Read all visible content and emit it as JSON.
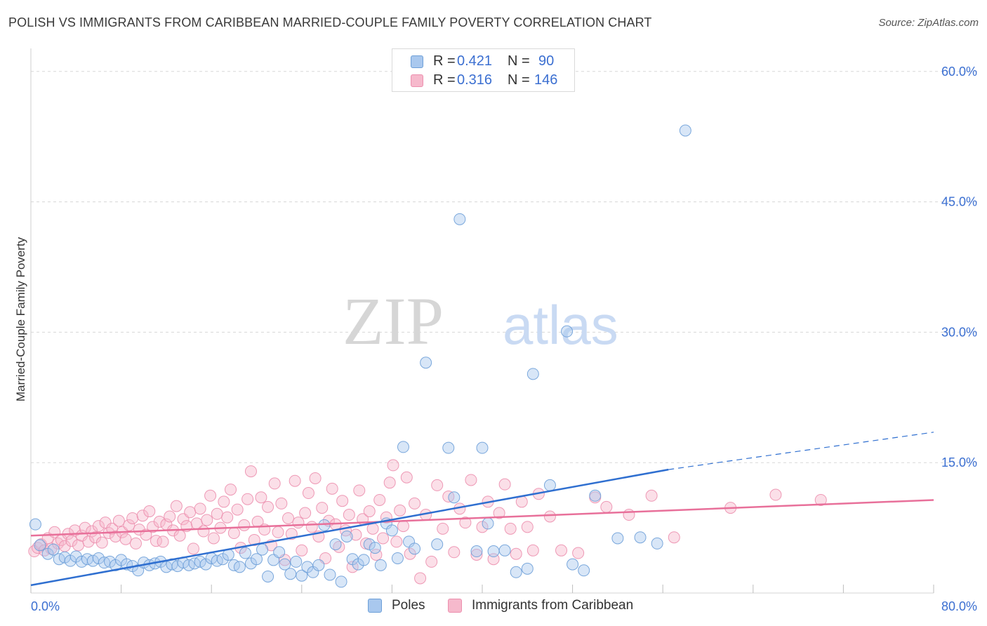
{
  "title": "POLISH VS IMMIGRANTS FROM CARIBBEAN MARRIED-COUPLE FAMILY POVERTY CORRELATION CHART",
  "source": "Source: ZipAtlas.com",
  "watermark": {
    "zip": "ZIP",
    "atlas": "atlas"
  },
  "legend_top": {
    "rows": [
      {
        "r_label": "R =",
        "r_value": "0.421",
        "n_label": "N =",
        "n_value": "90"
      },
      {
        "r_label": "R =",
        "r_value": "0.316",
        "n_label": "N =",
        "n_value": "146"
      }
    ]
  },
  "legend_bottom": {
    "items": [
      {
        "label": "Poles"
      },
      {
        "label": "Immigrants from Caribbean"
      }
    ]
  },
  "colors": {
    "blue_fill": "#a9c8ee",
    "blue_stroke": "#6d9fd8",
    "blue_line": "#2f6fd0",
    "pink_fill": "#f6b9cc",
    "pink_stroke": "#ec8fae",
    "pink_line": "#e8709a",
    "axis_text": "#3b6fd1",
    "grid": "#d8d8d8"
  },
  "chart_data": {
    "type": "scatter",
    "title": "POLISH VS IMMIGRANTS FROM CARIBBEAN MARRIED-COUPLE FAMILY POVERTY CORRELATION CHART",
    "xlabel": "",
    "ylabel": "Married-Couple Family Poverty",
    "xlim": [
      0,
      80
    ],
    "ylim": [
      0,
      62
    ],
    "x_tick_labels": [
      "0.0%",
      "80.0%"
    ],
    "y_ticks": [
      15,
      30,
      45,
      60
    ],
    "y_tick_labels": [
      "15.0%",
      "30.0%",
      "45.0%",
      "60.0%"
    ],
    "grid": true,
    "legend_position": "top-center",
    "series": [
      {
        "name": "Poles",
        "r": 0.421,
        "n": 90,
        "trend": {
          "x0": 0,
          "y0": 0.9,
          "x1": 56.5,
          "y1": 14.2,
          "dashed_to_x": 80,
          "dashed_to_y": 18.5
        },
        "points": [
          [
            0.4,
            7.9
          ],
          [
            0.8,
            5.5
          ],
          [
            1.5,
            4.5
          ],
          [
            2.0,
            5.0
          ],
          [
            2.5,
            3.9
          ],
          [
            3.0,
            4.1
          ],
          [
            3.5,
            3.7
          ],
          [
            4.0,
            4.2
          ],
          [
            4.5,
            3.6
          ],
          [
            5.0,
            3.9
          ],
          [
            5.5,
            3.7
          ],
          [
            6.0,
            4.0
          ],
          [
            6.5,
            3.5
          ],
          [
            7.0,
            3.6
          ],
          [
            7.5,
            3.2
          ],
          [
            8.0,
            3.8
          ],
          [
            8.5,
            3.3
          ],
          [
            9.0,
            3.1
          ],
          [
            9.5,
            2.6
          ],
          [
            10.0,
            3.5
          ],
          [
            10.5,
            3.2
          ],
          [
            11.0,
            3.4
          ],
          [
            11.5,
            3.6
          ],
          [
            12.0,
            3.0
          ],
          [
            12.5,
            3.3
          ],
          [
            13.0,
            3.1
          ],
          [
            13.5,
            3.5
          ],
          [
            14.0,
            3.2
          ],
          [
            14.5,
            3.4
          ],
          [
            15.0,
            3.6
          ],
          [
            15.5,
            3.3
          ],
          [
            16.0,
            4.0
          ],
          [
            16.5,
            3.7
          ],
          [
            17.0,
            3.9
          ],
          [
            17.5,
            4.4
          ],
          [
            18.0,
            3.2
          ],
          [
            18.5,
            3.0
          ],
          [
            19.0,
            4.6
          ],
          [
            19.5,
            3.4
          ],
          [
            20.0,
            3.9
          ],
          [
            20.5,
            5.0
          ],
          [
            21.0,
            1.9
          ],
          [
            21.5,
            3.8
          ],
          [
            22.0,
            4.7
          ],
          [
            22.5,
            3.3
          ],
          [
            23.0,
            2.2
          ],
          [
            23.5,
            3.6
          ],
          [
            24.0,
            2.0
          ],
          [
            24.5,
            3.0
          ],
          [
            25.0,
            2.4
          ],
          [
            25.5,
            3.2
          ],
          [
            26.0,
            7.8
          ],
          [
            26.5,
            2.1
          ],
          [
            27.0,
            5.6
          ],
          [
            27.5,
            1.3
          ],
          [
            28.0,
            6.5
          ],
          [
            28.5,
            3.9
          ],
          [
            29.0,
            3.3
          ],
          [
            29.5,
            3.8
          ],
          [
            30.0,
            5.6
          ],
          [
            30.5,
            5.2
          ],
          [
            31.0,
            3.2
          ],
          [
            31.5,
            8.0
          ],
          [
            32.0,
            7.2
          ],
          [
            32.5,
            4.0
          ],
          [
            33.0,
            16.8
          ],
          [
            33.5,
            5.9
          ],
          [
            34.0,
            5.1
          ],
          [
            35.0,
            26.5
          ],
          [
            36.0,
            5.6
          ],
          [
            37.0,
            16.7
          ],
          [
            37.5,
            11.0
          ],
          [
            38.0,
            43.0
          ],
          [
            39.5,
            4.8
          ],
          [
            40.0,
            16.7
          ],
          [
            40.5,
            8.0
          ],
          [
            41.0,
            4.8
          ],
          [
            42.0,
            4.9
          ],
          [
            43.0,
            2.4
          ],
          [
            44.0,
            2.8
          ],
          [
            44.5,
            25.2
          ],
          [
            46.0,
            12.4
          ],
          [
            47.5,
            30.1
          ],
          [
            48.0,
            3.3
          ],
          [
            49.0,
            2.6
          ],
          [
            50.0,
            11.2
          ],
          [
            52.0,
            6.3
          ],
          [
            54.0,
            6.4
          ],
          [
            55.5,
            5.7
          ],
          [
            58.0,
            53.2
          ]
        ]
      },
      {
        "name": "Immigrants from Caribbean",
        "r": 0.316,
        "n": 146,
        "trend": {
          "x0": 0,
          "y0": 6.6,
          "x1": 80,
          "y1": 10.7
        },
        "points": [
          [
            0.3,
            4.8
          ],
          [
            0.6,
            5.2
          ],
          [
            0.9,
            5.6
          ],
          [
            1.2,
            4.9
          ],
          [
            1.5,
            6.3
          ],
          [
            1.8,
            5.1
          ],
          [
            2.1,
            7.0
          ],
          [
            2.4,
            5.7
          ],
          [
            2.7,
            6.1
          ],
          [
            3.0,
            5.4
          ],
          [
            3.3,
            6.8
          ],
          [
            3.6,
            6.0
          ],
          [
            3.9,
            7.2
          ],
          [
            4.2,
            5.5
          ],
          [
            4.5,
            6.6
          ],
          [
            4.8,
            7.5
          ],
          [
            5.1,
            5.9
          ],
          [
            5.4,
            7.1
          ],
          [
            5.7,
            6.4
          ],
          [
            6.0,
            7.7
          ],
          [
            6.3,
            5.8
          ],
          [
            6.6,
            8.1
          ],
          [
            6.9,
            6.9
          ],
          [
            7.2,
            7.4
          ],
          [
            7.5,
            6.5
          ],
          [
            7.8,
            8.3
          ],
          [
            8.1,
            7.0
          ],
          [
            8.4,
            6.2
          ],
          [
            8.7,
            7.8
          ],
          [
            9.0,
            8.6
          ],
          [
            9.3,
            5.7
          ],
          [
            9.6,
            7.3
          ],
          [
            9.9,
            8.9
          ],
          [
            10.2,
            6.7
          ],
          [
            10.5,
            9.4
          ],
          [
            10.8,
            7.6
          ],
          [
            11.1,
            6.0
          ],
          [
            11.4,
            8.2
          ],
          [
            11.7,
            5.9
          ],
          [
            12.0,
            7.9
          ],
          [
            12.3,
            8.8
          ],
          [
            12.6,
            7.2
          ],
          [
            12.9,
            10.0
          ],
          [
            13.2,
            6.6
          ],
          [
            13.5,
            8.5
          ],
          [
            13.8,
            7.7
          ],
          [
            14.1,
            9.3
          ],
          [
            14.4,
            5.1
          ],
          [
            14.7,
            8.0
          ],
          [
            15.0,
            9.7
          ],
          [
            15.3,
            7.1
          ],
          [
            15.6,
            8.4
          ],
          [
            15.9,
            11.2
          ],
          [
            16.2,
            6.3
          ],
          [
            16.5,
            9.1
          ],
          [
            16.8,
            7.5
          ],
          [
            17.1,
            10.5
          ],
          [
            17.4,
            8.7
          ],
          [
            17.7,
            11.9
          ],
          [
            18.0,
            6.9
          ],
          [
            18.3,
            9.6
          ],
          [
            18.6,
            5.2
          ],
          [
            18.9,
            7.8
          ],
          [
            19.2,
            10.8
          ],
          [
            19.5,
            14.0
          ],
          [
            19.8,
            6.1
          ],
          [
            20.1,
            8.2
          ],
          [
            20.4,
            11.0
          ],
          [
            20.7,
            7.3
          ],
          [
            21.0,
            9.9
          ],
          [
            21.3,
            5.5
          ],
          [
            21.6,
            12.6
          ],
          [
            21.9,
            7.0
          ],
          [
            22.2,
            10.3
          ],
          [
            22.5,
            3.8
          ],
          [
            22.8,
            8.6
          ],
          [
            23.1,
            6.8
          ],
          [
            23.4,
            12.9
          ],
          [
            23.7,
            8.1
          ],
          [
            24.0,
            4.9
          ],
          [
            24.3,
            9.2
          ],
          [
            24.6,
            11.5
          ],
          [
            24.9,
            7.6
          ],
          [
            25.2,
            13.2
          ],
          [
            25.5,
            6.5
          ],
          [
            25.8,
            9.8
          ],
          [
            26.1,
            4.0
          ],
          [
            26.4,
            8.3
          ],
          [
            26.7,
            12.0
          ],
          [
            27.0,
            7.9
          ],
          [
            27.3,
            5.3
          ],
          [
            27.6,
            10.6
          ],
          [
            27.9,
            7.2
          ],
          [
            28.2,
            9.0
          ],
          [
            28.5,
            3.0
          ],
          [
            28.8,
            6.7
          ],
          [
            29.1,
            11.8
          ],
          [
            29.4,
            8.5
          ],
          [
            29.7,
            5.7
          ],
          [
            30.0,
            9.4
          ],
          [
            30.3,
            7.4
          ],
          [
            30.6,
            4.4
          ],
          [
            30.9,
            10.7
          ],
          [
            31.2,
            6.3
          ],
          [
            31.5,
            8.7
          ],
          [
            31.8,
            12.7
          ],
          [
            32.1,
            14.7
          ],
          [
            32.4,
            5.9
          ],
          [
            32.7,
            9.5
          ],
          [
            33.0,
            7.7
          ],
          [
            33.3,
            13.3
          ],
          [
            33.6,
            4.5
          ],
          [
            34.0,
            10.3
          ],
          [
            34.5,
            1.7
          ],
          [
            35.0,
            9.0
          ],
          [
            35.5,
            3.6
          ],
          [
            36.0,
            12.4
          ],
          [
            36.5,
            7.4
          ],
          [
            37.0,
            11.1
          ],
          [
            37.5,
            4.7
          ],
          [
            38.0,
            9.7
          ],
          [
            38.5,
            8.1
          ],
          [
            39.0,
            13.0
          ],
          [
            39.5,
            4.4
          ],
          [
            40.0,
            7.6
          ],
          [
            40.5,
            10.5
          ],
          [
            41.0,
            3.9
          ],
          [
            41.5,
            9.2
          ],
          [
            42.0,
            12.5
          ],
          [
            42.5,
            7.4
          ],
          [
            43.0,
            4.5
          ],
          [
            43.5,
            10.5
          ],
          [
            44.0,
            7.6
          ],
          [
            44.5,
            4.9
          ],
          [
            45.0,
            11.4
          ],
          [
            46.0,
            8.8
          ],
          [
            47.0,
            4.9
          ],
          [
            48.5,
            4.6
          ],
          [
            50.0,
            11.0
          ],
          [
            51.0,
            9.9
          ],
          [
            53.0,
            9.0
          ],
          [
            55.0,
            11.2
          ],
          [
            57.0,
            6.4
          ],
          [
            62.0,
            9.8
          ],
          [
            66.0,
            11.3
          ],
          [
            70.0,
            10.7
          ]
        ]
      }
    ]
  }
}
